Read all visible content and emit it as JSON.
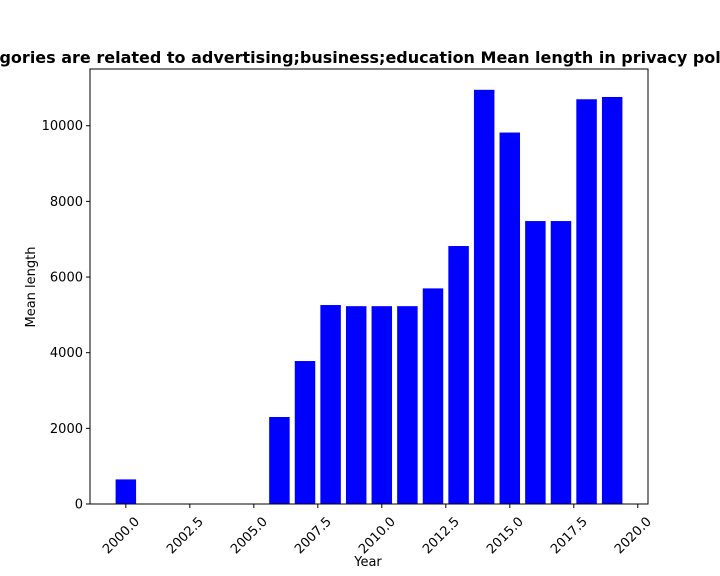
{
  "chart_data": {
    "type": "bar",
    "title": "Categories are related to advertising;business;education Mean length in privacy policies",
    "xlabel": "Year",
    "ylabel": "Mean length",
    "x": [
      2000,
      2006,
      2007,
      2008,
      2009,
      2010,
      2011,
      2012,
      2013,
      2014,
      2015,
      2016,
      2017,
      2018,
      2019
    ],
    "values": [
      650,
      2300,
      3780,
      5260,
      5230,
      5230,
      5230,
      5700,
      6820,
      10950,
      9820,
      7480,
      7480,
      10700,
      10760
    ],
    "xlim": [
      1998.6,
      2020.4
    ],
    "ylim": [
      0,
      11500
    ],
    "xticks": [
      "2000.0",
      "2002.5",
      "2005.0",
      "2007.5",
      "2010.0",
      "2012.5",
      "2015.0",
      "2017.5",
      "2020.0"
    ],
    "xtick_values": [
      2000,
      2002.5,
      2005,
      2007.5,
      2010,
      2012.5,
      2015,
      2017.5,
      2020
    ],
    "yticks": [
      "0",
      "2000",
      "4000",
      "6000",
      "8000",
      "10000"
    ],
    "ytick_values": [
      0,
      2000,
      4000,
      6000,
      8000,
      10000
    ],
    "bar_color": "#0000ff",
    "grid": false,
    "legend": "none"
  }
}
